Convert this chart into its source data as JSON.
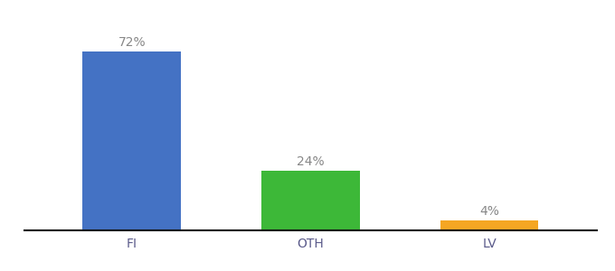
{
  "categories": [
    "FI",
    "OTH",
    "LV"
  ],
  "values": [
    72,
    24,
    4
  ],
  "bar_colors": [
    "#4472c4",
    "#3db838",
    "#f5a623"
  ],
  "labels": [
    "72%",
    "24%",
    "4%"
  ],
  "ylim": [
    0,
    85
  ],
  "background_color": "#ffffff",
  "label_fontsize": 10,
  "tick_fontsize": 10,
  "bar_width": 0.55,
  "x_positions": [
    1,
    2,
    3
  ]
}
